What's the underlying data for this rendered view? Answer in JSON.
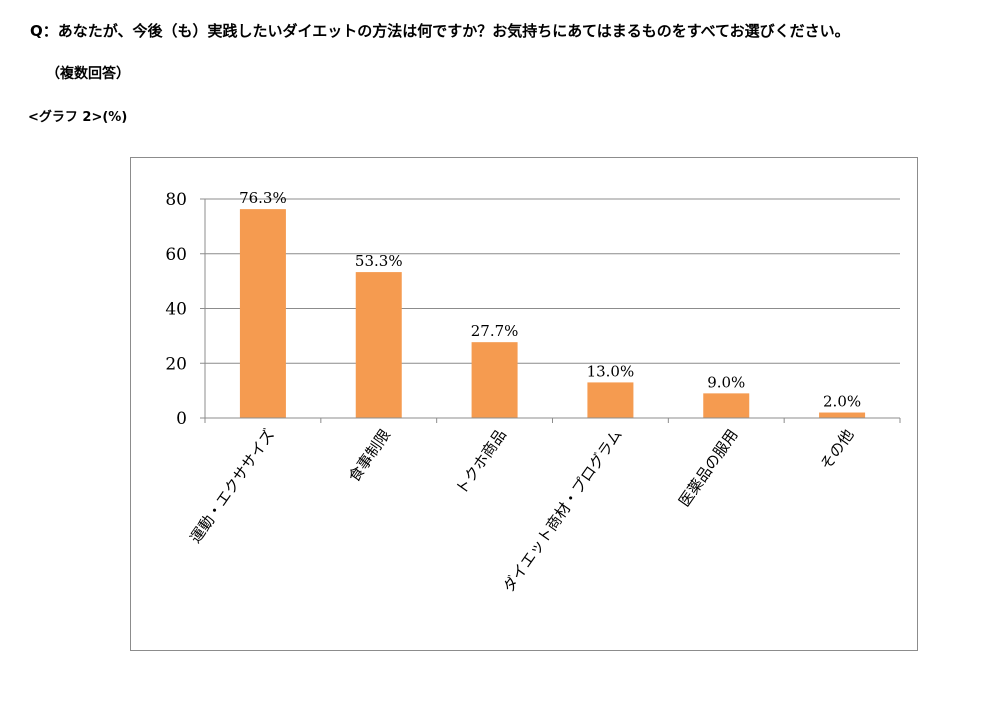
{
  "question": "Q：あなたが、今後（も）実践したいダイエットの方法は何ですか？お気持ちにあてはまるものをすべてお選びください。",
  "note": "（複数回答）",
  "graph_label": "<グラフ 2>(%)",
  "colors": {
    "bar": "#f59b50",
    "grid": "#8c8c8c",
    "axis": "#8c8c8c"
  },
  "chart_data": {
    "type": "bar",
    "title": "",
    "xlabel": "",
    "ylabel": "",
    "categories": [
      "運動・エクササイズ",
      "食事制限",
      "トクホ商品",
      "ダイエット商材・プログラム",
      "医薬品の服用",
      "その他"
    ],
    "values": [
      76.3,
      53.3,
      27.7,
      13.0,
      9.0,
      2.0
    ],
    "data_labels": [
      "76.3%",
      "53.3%",
      "27.7%",
      "13.0%",
      "9.0%",
      "2.0%"
    ],
    "yticks": [
      0,
      20,
      40,
      60,
      80
    ],
    "ylim": [
      0,
      80
    ],
    "grid": true,
    "legend": "none"
  }
}
